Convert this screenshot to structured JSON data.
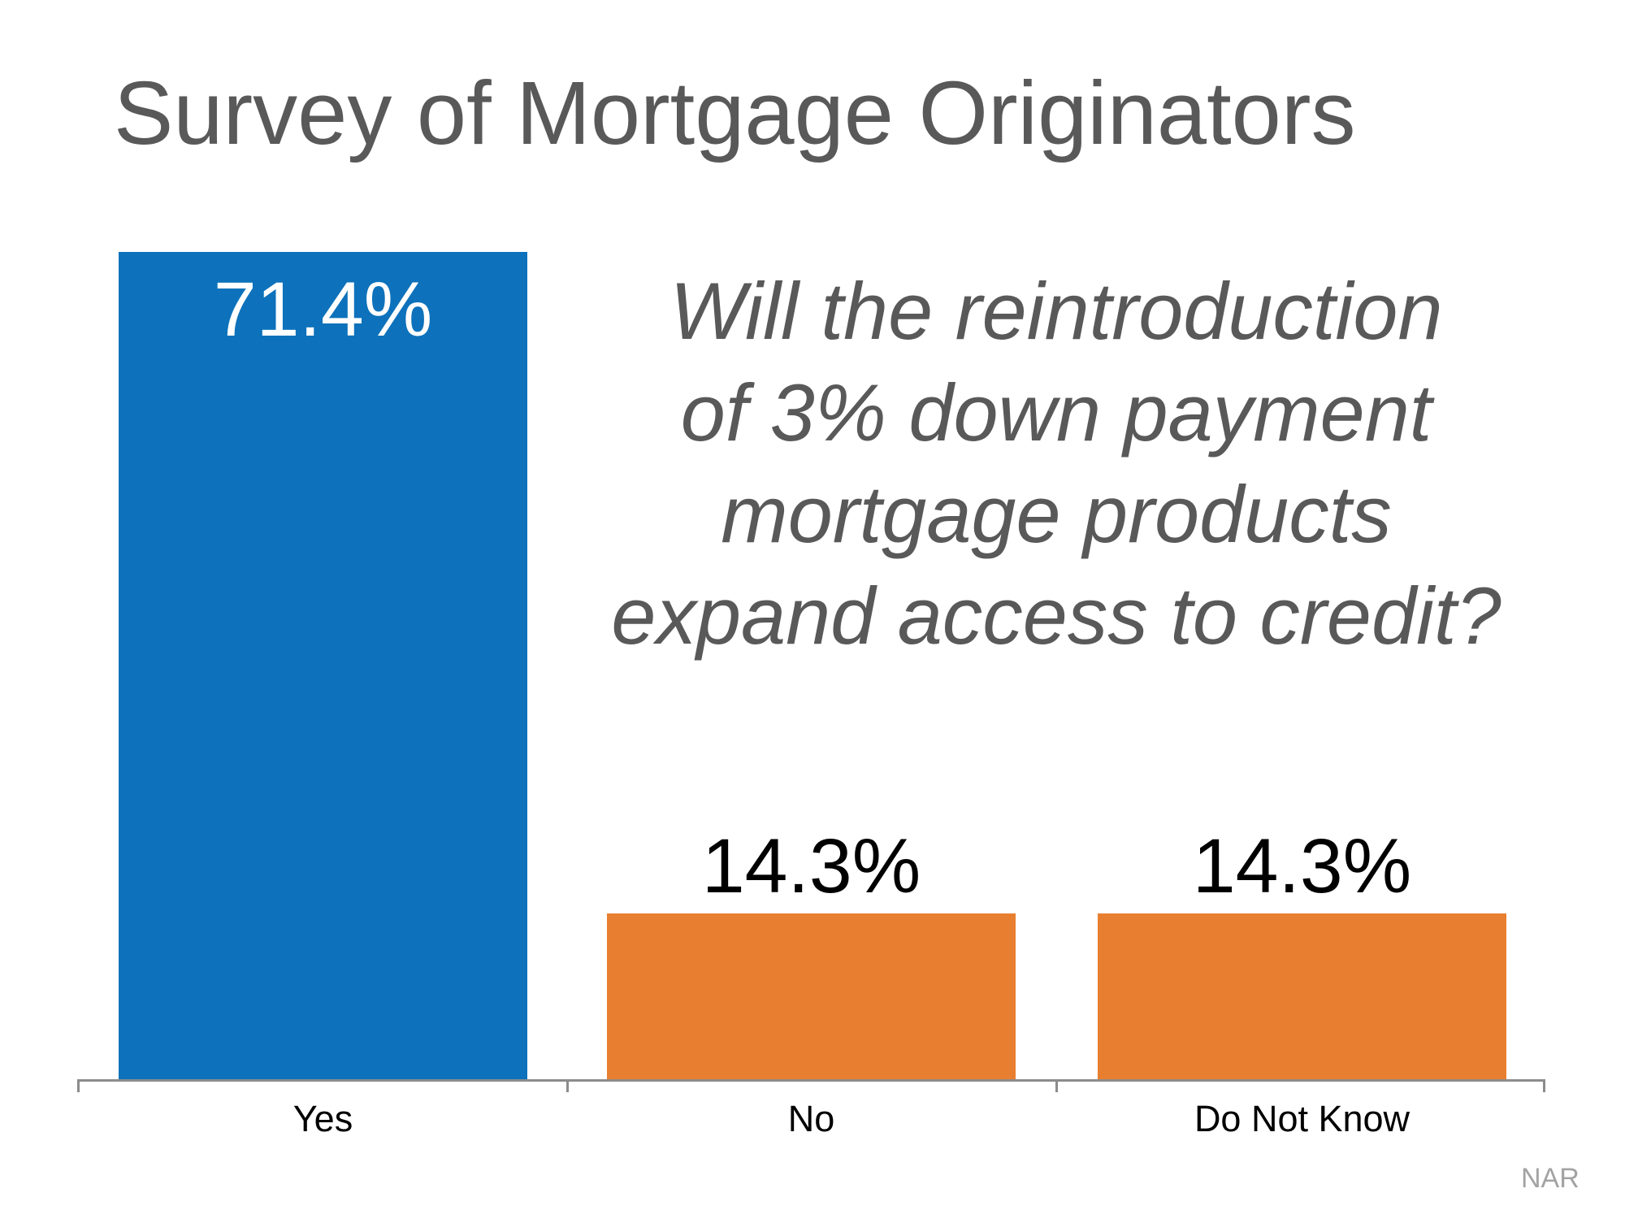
{
  "title": "Survey of Mortgage Originators",
  "question": {
    "lines": [
      "Will the reintroduction",
      "of 3% down payment",
      "mortgage products",
      "expand access to credit?"
    ]
  },
  "source": "NAR",
  "chart_data": {
    "type": "bar",
    "title": "Survey of Mortgage Originators",
    "categories": [
      "Yes",
      "No",
      "Do Not Know"
    ],
    "values": [
      71.4,
      14.3,
      14.3
    ],
    "value_labels": [
      "71.4%",
      "14.3%",
      "14.3%"
    ],
    "annotation": "Will the reintroduction of 3% down payment mortgage products expand access to credit?",
    "source": "NAR",
    "bar_colors": [
      "#0D72BB",
      "#E87F30",
      "#E87F30"
    ],
    "value_label_colors": [
      "#FFFFFF",
      "#000000",
      "#000000"
    ],
    "text_color": "#595959",
    "axis_color": "#8C8C8C",
    "grid": false,
    "legend": false,
    "y_axis_visible": false
  }
}
